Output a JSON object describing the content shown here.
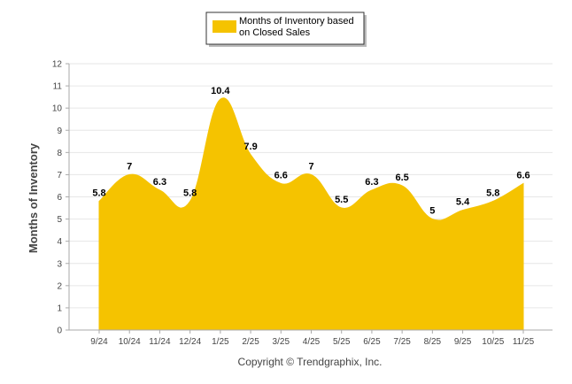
{
  "chart_data": {
    "type": "area",
    "title": "",
    "xlabel": "",
    "ylabel": "Months of Inventory",
    "ylim": [
      0,
      12
    ],
    "yticks": [
      "0",
      "1",
      "2",
      "3",
      "4",
      "5",
      "6",
      "7",
      "8",
      "9",
      "10",
      "11",
      "12"
    ],
    "categories": [
      "9/24",
      "10/24",
      "11/24",
      "12/24",
      "1/25",
      "2/25",
      "3/25",
      "4/25",
      "5/25",
      "6/25",
      "7/25",
      "8/25",
      "9/25",
      "10/25",
      "11/25"
    ],
    "series": [
      {
        "name": "Months of Inventory based on Closed Sales",
        "values": [
          5.8,
          7,
          6.3,
          5.8,
          10.4,
          7.9,
          6.6,
          7,
          5.5,
          6.3,
          6.5,
          5,
          5.4,
          5.8,
          6.6
        ],
        "labels": [
          "5.8",
          "7",
          "6.3",
          "5.8",
          "10.4",
          "7.9",
          "6.6",
          "7",
          "5.5",
          "6.3",
          "6.5",
          "5",
          "5.4",
          "5.8",
          "6.6"
        ],
        "color": "#f5c300"
      }
    ],
    "legend": {
      "line1": "Months of Inventory based",
      "line2": "on Closed Sales",
      "placement": "top-center"
    },
    "grid": true
  },
  "footer": {
    "copyright": "Copyright © Trendgraphix, Inc."
  },
  "colors": {
    "area": "#f5c300",
    "grid": "#e6e6e6",
    "axis": "#aaaaaa"
  }
}
